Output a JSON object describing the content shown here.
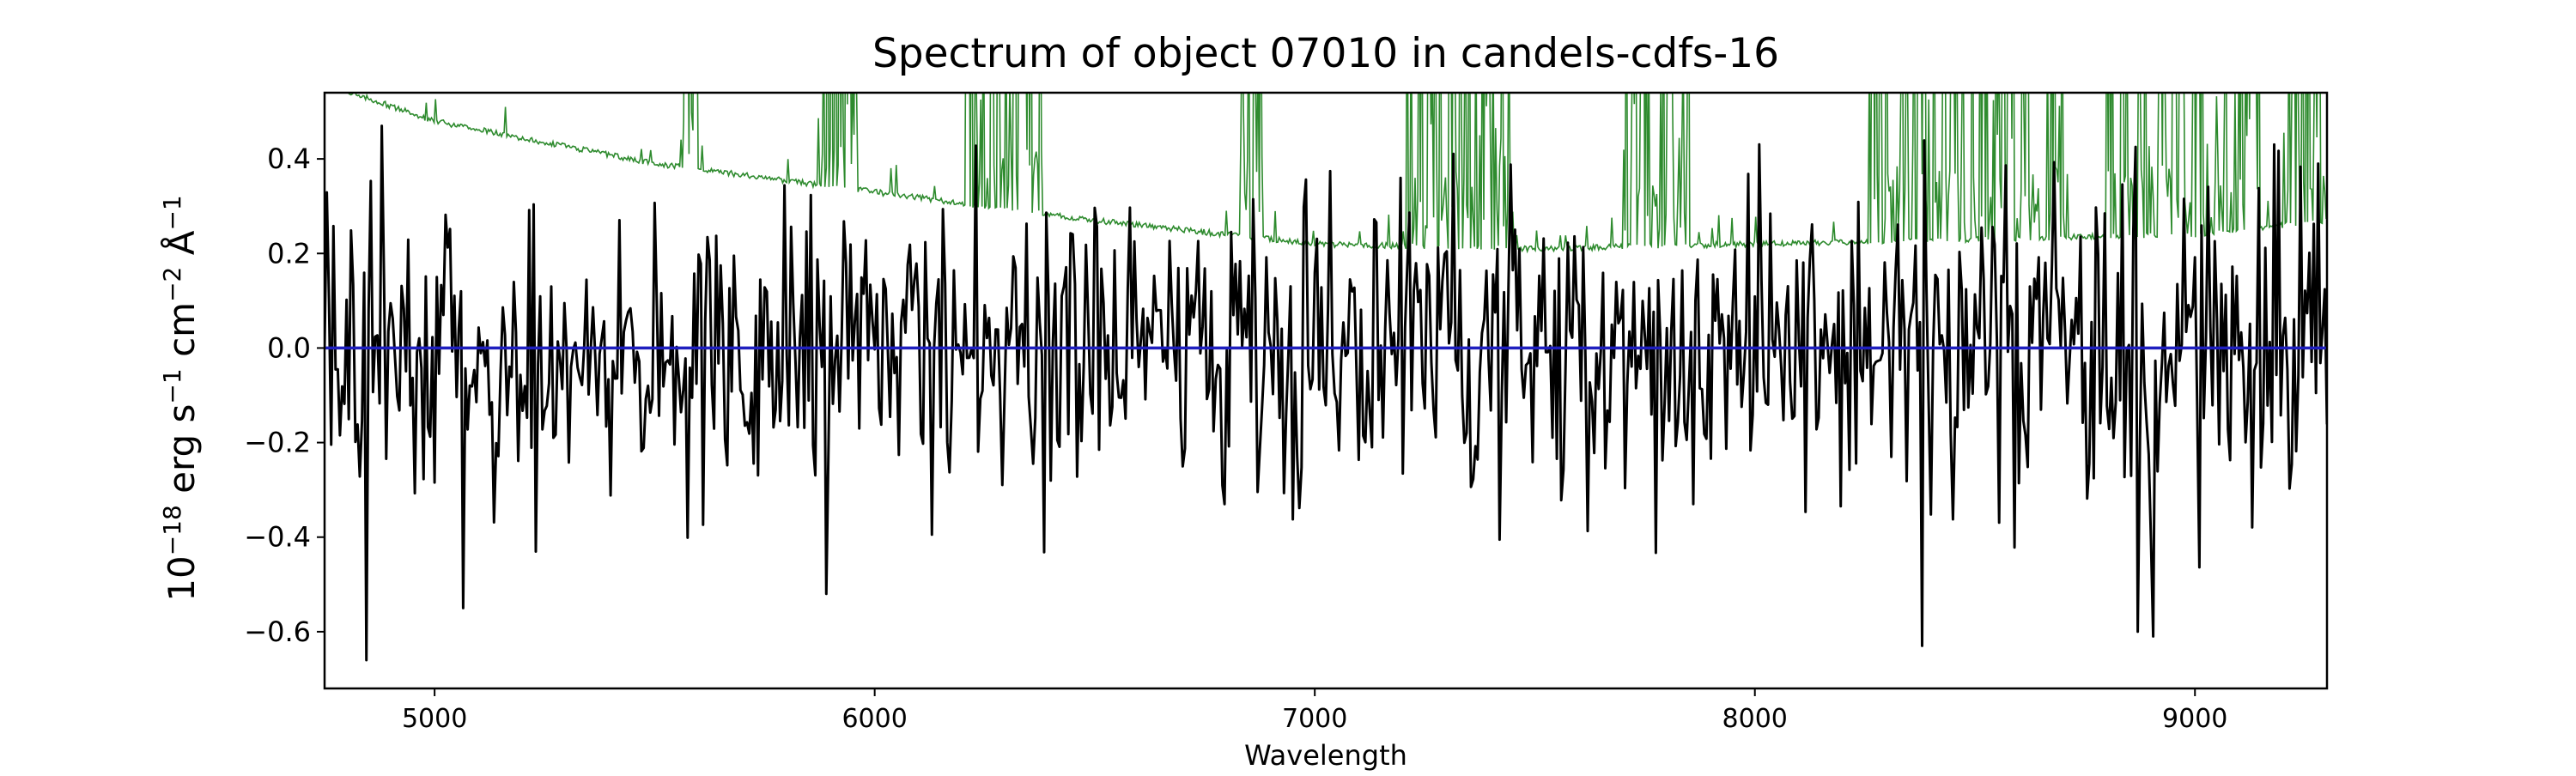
{
  "chart_data": {
    "type": "line",
    "title": "Spectrum of object 07010 in candels-cdfs-16",
    "xlabel": "Wavelength",
    "ylabel_parts": {
      "base": "10",
      "exp1": "−18",
      "t2": " erg s",
      "exp2": "−1",
      "t3": " cm",
      "exp3": "−2",
      "t4": " Å",
      "exp4": "−1"
    },
    "xlim": [
      4750,
      9300
    ],
    "ylim": [
      -0.72,
      0.54
    ],
    "xticks": [
      5000,
      6000,
      7000,
      8000,
      9000
    ],
    "yticks": [
      -0.6,
      -0.4,
      -0.2,
      0.0,
      0.2,
      0.4
    ],
    "ytick_labels": [
      "−0.6",
      "−0.4",
      "−0.2",
      "0.0",
      "0.2",
      "0.4"
    ],
    "grid": false,
    "legend": "none",
    "series": [
      {
        "role": "flux",
        "color": "#000000",
        "x_start": 4750,
        "x_end": 9300,
        "x_step": 5,
        "mean": 0.0,
        "noise_sigma": 0.16,
        "highlights": [
          {
            "x": 4845,
            "y": -0.66
          },
          {
            "x": 4880,
            "y": 0.47
          },
          {
            "x": 5065,
            "y": -0.55
          },
          {
            "x": 5890,
            "y": -0.52
          },
          {
            "x": 8380,
            "y": -0.63
          },
          {
            "x": 8870,
            "y": -0.6
          },
          {
            "x": 8905,
            "y": -0.61
          },
          {
            "x": 9280,
            "y": 0.39
          }
        ]
      },
      {
        "role": "error",
        "color": "#2e8b2e",
        "anchors": [
          [
            4750,
            0.56
          ],
          [
            5000,
            0.48
          ],
          [
            5500,
            0.39
          ],
          [
            6000,
            0.33
          ],
          [
            6500,
            0.27
          ],
          [
            7000,
            0.22
          ],
          [
            7500,
            0.21
          ],
          [
            8000,
            0.22
          ],
          [
            8500,
            0.23
          ],
          [
            9000,
            0.24
          ],
          [
            9300,
            0.27
          ]
        ],
        "spike_regions": [
          [
            5560,
            5600
          ],
          [
            5870,
            5960
          ],
          [
            6200,
            6380
          ],
          [
            6830,
            6880
          ],
          [
            7200,
            7450
          ],
          [
            7700,
            7850
          ],
          [
            8260,
            8650
          ],
          [
            8660,
            8710
          ],
          [
            8800,
            9150
          ],
          [
            9200,
            9300
          ]
        ]
      },
      {
        "role": "zero",
        "color": "#1f1fbf",
        "x": [
          4750,
          9300
        ],
        "y": [
          0.0,
          0.0
        ]
      }
    ]
  }
}
